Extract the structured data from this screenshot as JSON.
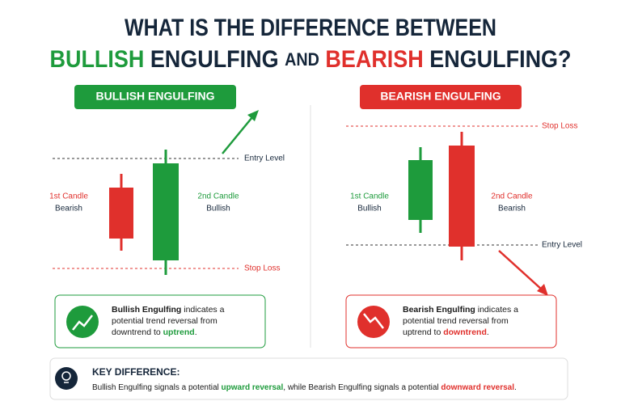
{
  "title": {
    "line1": "WHAT IS THE DIFFERENCE BETWEEN",
    "bullish": "BULLISH",
    "engulfing1": " ENGULFING ",
    "and": "AND",
    "bearish": " BEARISH",
    "engulfing2": " ENGULFING?"
  },
  "bullish_panel": {
    "badge": "BULLISH ENGULFING",
    "first_candle": "1st Candle",
    "first_type": "Bearish",
    "second_candle": "2nd Candle",
    "second_type": "Bullish",
    "entry": "Entry Level",
    "stop": "Stop Loss",
    "info": {
      "term": "Bullish Engulfing",
      "line1": " indicates a",
      "line2": "potential trend reversal from",
      "line3": "downtrend to ",
      "highlight": "uptrend",
      "end": "."
    }
  },
  "bearish_panel": {
    "badge": "BEARISH ENGULFING",
    "stop": "Stop Loss",
    "first_candle": "1st Candle",
    "first_type": "Bullish",
    "second_candle": "2nd Candle",
    "second_type": "Bearish",
    "entry": "Entry Level",
    "info": {
      "term": "Bearish Engulfing",
      "line1": " indicates a",
      "line2": "potential trend reversal from",
      "line3": "uptrend to ",
      "highlight": "downtrend",
      "end": "."
    }
  },
  "key": {
    "heading": "KEY DIFFERENCE:",
    "text1": "Bullish Engulfing signals a potential ",
    "up": "upward reversal",
    "text2": ", while Bearish Engulfing signals a potential ",
    "down": "downward reversal",
    "end": "."
  }
}
